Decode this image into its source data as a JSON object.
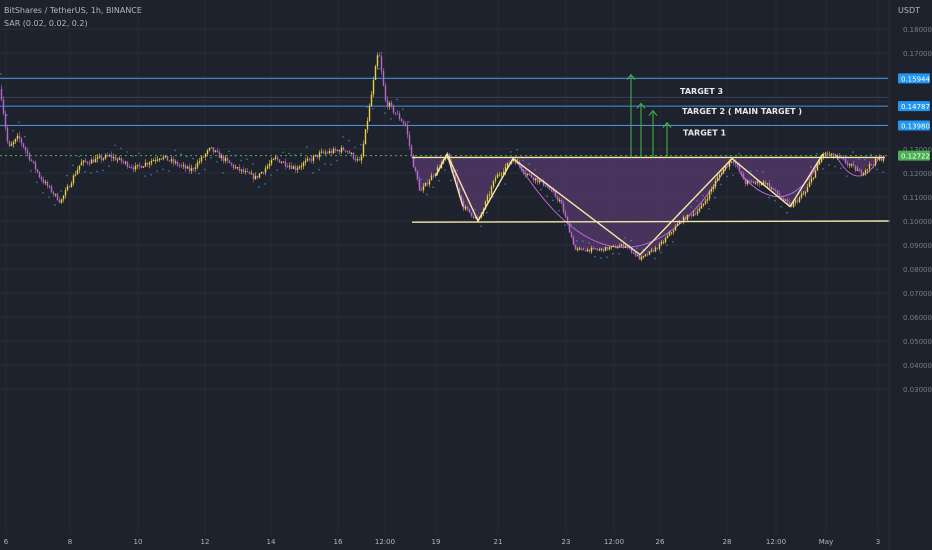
{
  "header": {
    "title": "BitShares / TetherUS, 1h, BINANCE",
    "indicator": "SAR (0.02, 0.02, 0.2)"
  },
  "currency": "USDT",
  "colors": {
    "background": "#1e222d",
    "bull": "#e8d14a",
    "bear": "#b56ac5",
    "sar": "#4a90e2",
    "level": "#4a90e2",
    "pattern": "#f3e8a6",
    "region": "#5a3a70",
    "arrow": "#3fae49",
    "current": "#4caf50"
  },
  "chart_data": {
    "type": "candlestick",
    "symbol": "BitShares / TetherUS",
    "interval": "1h",
    "exchange": "BINANCE",
    "ylim": [
      0.028,
      0.18
    ],
    "y_ticks": [
      0.03,
      0.04,
      0.05,
      0.06,
      0.07,
      0.08,
      0.09,
      0.1,
      0.11,
      0.12,
      0.13,
      0.17,
      0.18
    ],
    "x_ticks": [
      "6",
      "8",
      "10",
      "12",
      "14",
      "16",
      "12:00",
      "19",
      "21",
      "23",
      "12:00",
      "26",
      "28",
      "12:00",
      "May",
      "3"
    ],
    "price_path": [
      [
        0,
        0.155
      ],
      [
        8,
        0.13
      ],
      [
        18,
        0.135
      ],
      [
        40,
        0.118
      ],
      [
        60,
        0.108
      ],
      [
        80,
        0.124
      ],
      [
        110,
        0.127
      ],
      [
        135,
        0.122
      ],
      [
        160,
        0.127
      ],
      [
        190,
        0.121
      ],
      [
        210,
        0.13
      ],
      [
        235,
        0.122
      ],
      [
        255,
        0.118
      ],
      [
        275,
        0.126
      ],
      [
        295,
        0.122
      ],
      [
        320,
        0.128
      ],
      [
        345,
        0.13
      ],
      [
        360,
        0.124
      ],
      [
        370,
        0.15
      ],
      [
        378,
        0.171
      ],
      [
        385,
        0.15
      ],
      [
        395,
        0.145
      ],
      [
        405,
        0.14
      ],
      [
        412,
        0.125
      ],
      [
        420,
        0.112
      ],
      [
        430,
        0.118
      ],
      [
        447,
        0.127
      ],
      [
        463,
        0.106
      ],
      [
        478,
        0.1
      ],
      [
        495,
        0.118
      ],
      [
        513,
        0.126
      ],
      [
        525,
        0.12
      ],
      [
        545,
        0.115
      ],
      [
        560,
        0.108
      ],
      [
        575,
        0.088
      ],
      [
        600,
        0.088
      ],
      [
        625,
        0.09
      ],
      [
        640,
        0.084
      ],
      [
        660,
        0.09
      ],
      [
        680,
        0.1
      ],
      [
        700,
        0.105
      ],
      [
        720,
        0.12
      ],
      [
        732,
        0.126
      ],
      [
        745,
        0.116
      ],
      [
        765,
        0.116
      ],
      [
        790,
        0.106
      ],
      [
        805,
        0.112
      ],
      [
        823,
        0.128
      ],
      [
        840,
        0.126
      ],
      [
        860,
        0.12
      ],
      [
        875,
        0.125
      ],
      [
        885,
        0.127
      ]
    ],
    "horizontal_levels": [
      {
        "value": 0.15944,
        "label": "0.15944"
      },
      {
        "value": 0.14787,
        "label": "0.14787"
      },
      {
        "value": 0.1398,
        "label": "0.13980"
      },
      {
        "value": 0.12722,
        "label": "0.12722",
        "style": "current-price-dotted"
      }
    ],
    "neckline": 0.1265,
    "support_line": {
      "start": 0.0995,
      "end": 0.1
    },
    "pattern_zigzag": [
      [
        "19",
        0.128
      ],
      [
        "",
        0.1
      ],
      [
        "21",
        0.126
      ],
      [
        "",
        0.086
      ],
      [
        "26",
        0.126
      ],
      [
        "28",
        0.126
      ],
      [
        "",
        0.106
      ],
      [
        "",
        0.128
      ]
    ],
    "annotations": [
      "TARGET 3",
      "TARGET 2 ( MAIN TARGET )",
      "TARGET 1"
    ]
  }
}
